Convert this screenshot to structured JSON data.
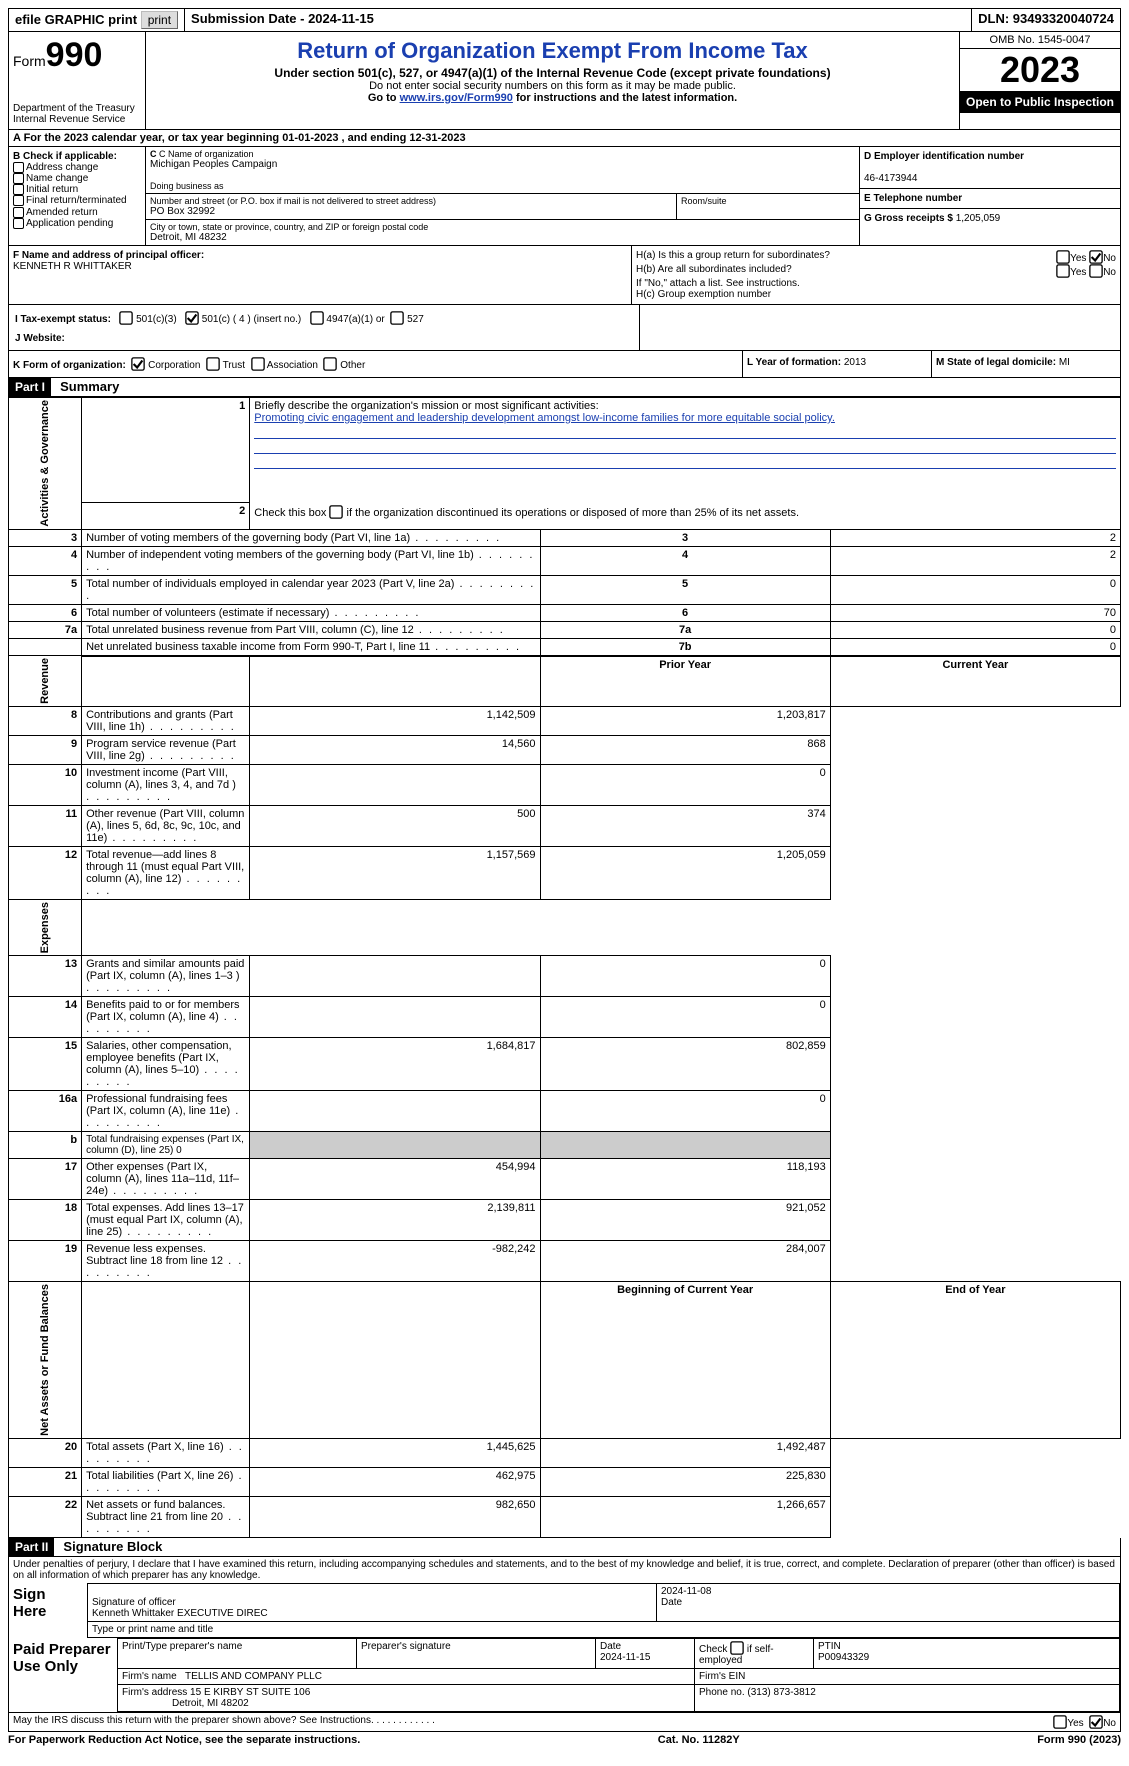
{
  "topbar": {
    "efile": "efile GRAPHIC print",
    "submission_label": "Submission Date - 2024-11-15",
    "dln_label": "DLN: 93493320040724"
  },
  "header": {
    "form_word": "Form",
    "form_num": "990",
    "dept": "Department of the Treasury",
    "irs": "Internal Revenue Service",
    "title": "Return of Organization Exempt From Income Tax",
    "sub": "Under section 501(c), 527, or 4947(a)(1) of the Internal Revenue Code (except private foundations)",
    "note1": "Do not enter social security numbers on this form as it may be made public.",
    "note2_pre": "Go to ",
    "note2_link": "www.irs.gov/Form990",
    "note2_post": " for instructions and the latest information.",
    "omb": "OMB No. 1545-0047",
    "year": "2023",
    "inspect": "Open to Public Inspection"
  },
  "line_a": "A For the 2023 calendar year, or tax year beginning 01-01-2023   , and ending 12-31-2023",
  "box_b": {
    "hdr": "B Check if applicable:",
    "opts": [
      "Address change",
      "Name change",
      "Initial return",
      "Final return/terminated",
      "Amended return",
      "Application pending"
    ]
  },
  "box_c": {
    "name_lbl": "C Name of organization",
    "name": "Michigan Peoples Campaign",
    "dba_lbl": "Doing business as",
    "addr_lbl": "Number and street (or P.O. box if mail is not delivered to street address)",
    "addr": "PO Box 32992",
    "room_lbl": "Room/suite",
    "city_lbl": "City or town, state or province, country, and ZIP or foreign postal code",
    "city": "Detroit, MI  48232"
  },
  "box_d": {
    "lbl": "D Employer identification number",
    "val": "46-4173944"
  },
  "box_e": {
    "lbl": "E Telephone number",
    "val": ""
  },
  "box_g": {
    "lbl": "G Gross receipts $",
    "val": "1,205,059"
  },
  "box_f": {
    "lbl": "F  Name and address of principal officer:",
    "val": "KENNETH R WHITTAKER"
  },
  "box_h": {
    "a": "H(a)  Is this a group return for subordinates?",
    "a_yes": "Yes",
    "a_no": "No",
    "b": "H(b)  Are all subordinates included?",
    "b_yes": "Yes",
    "b_no": "No",
    "b_note": "If \"No,\" attach a list. See instructions.",
    "c": "H(c)  Group exemption number"
  },
  "box_i": {
    "lbl": "I  Tax-exempt status:",
    "o1": "501(c)(3)",
    "o2": "501(c) ( 4 ) (insert no.)",
    "o3": "4947(a)(1) or",
    "o4": "527"
  },
  "box_j": {
    "lbl": "J  Website:",
    "val": ""
  },
  "box_k": {
    "lbl": "K Form of organization:",
    "o1": "Corporation",
    "o2": "Trust",
    "o3": "Association",
    "o4": "Other"
  },
  "box_l": {
    "lbl": "L Year of formation:",
    "val": "2013"
  },
  "box_m": {
    "lbl": "M State of legal domicile:",
    "val": "MI"
  },
  "part1": {
    "bar": "Part I",
    "title": "Summary"
  },
  "summary": {
    "side_ag": "Activities & Governance",
    "side_rev": "Revenue",
    "side_exp": "Expenses",
    "side_na": "Net Assets or Fund Balances",
    "l1_lbl": "Briefly describe the organization's mission or most significant activities:",
    "l1_val": "Promoting civic engagement and leadership development amongst low-income families for more equitable social policy.",
    "l2": "Check this box      if the organization discontinued its operations or disposed of more than 25% of its net assets.",
    "rows_ag": [
      {
        "n": "3",
        "d": "Number of voting members of the governing body (Part VI, line 1a)",
        "c": "3",
        "v": "2"
      },
      {
        "n": "4",
        "d": "Number of independent voting members of the governing body (Part VI, line 1b)",
        "c": "4",
        "v": "2"
      },
      {
        "n": "5",
        "d": "Total number of individuals employed in calendar year 2023 (Part V, line 2a)",
        "c": "5",
        "v": "0"
      },
      {
        "n": "6",
        "d": "Total number of volunteers (estimate if necessary)",
        "c": "6",
        "v": "70"
      },
      {
        "n": "7a",
        "d": "Total unrelated business revenue from Part VIII, column (C), line 12",
        "c": "7a",
        "v": "0"
      },
      {
        "n": "",
        "d": "Net unrelated business taxable income from Form 990-T, Part I, line 11",
        "c": "7b",
        "v": "0"
      }
    ],
    "hdr_prior": "Prior Year",
    "hdr_curr": "Current Year",
    "rows_rev": [
      {
        "n": "8",
        "d": "Contributions and grants (Part VIII, line 1h)",
        "p": "1,142,509",
        "c": "1,203,817"
      },
      {
        "n": "9",
        "d": "Program service revenue (Part VIII, line 2g)",
        "p": "14,560",
        "c": "868"
      },
      {
        "n": "10",
        "d": "Investment income (Part VIII, column (A), lines 3, 4, and 7d )",
        "p": "",
        "c": "0"
      },
      {
        "n": "11",
        "d": "Other revenue (Part VIII, column (A), lines 5, 6d, 8c, 9c, 10c, and 11e)",
        "p": "500",
        "c": "374"
      },
      {
        "n": "12",
        "d": "Total revenue—add lines 8 through 11 (must equal Part VIII, column (A), line 12)",
        "p": "1,157,569",
        "c": "1,205,059"
      }
    ],
    "rows_exp": [
      {
        "n": "13",
        "d": "Grants and similar amounts paid (Part IX, column (A), lines 1–3 )",
        "p": "",
        "c": "0"
      },
      {
        "n": "14",
        "d": "Benefits paid to or for members (Part IX, column (A), line 4)",
        "p": "",
        "c": "0"
      },
      {
        "n": "15",
        "d": "Salaries, other compensation, employee benefits (Part IX, column (A), lines 5–10)",
        "p": "1,684,817",
        "c": "802,859"
      },
      {
        "n": "16a",
        "d": "Professional fundraising fees (Part IX, column (A), line 11e)",
        "p": "",
        "c": "0"
      },
      {
        "n": "b",
        "d": "Total fundraising expenses (Part IX, column (D), line 25) 0",
        "p": "__SHADE__",
        "c": "__SHADE__",
        "small": true
      },
      {
        "n": "17",
        "d": "Other expenses (Part IX, column (A), lines 11a–11d, 11f–24e)",
        "p": "454,994",
        "c": "118,193"
      },
      {
        "n": "18",
        "d": "Total expenses. Add lines 13–17 (must equal Part IX, column (A), line 25)",
        "p": "2,139,811",
        "c": "921,052"
      },
      {
        "n": "19",
        "d": "Revenue less expenses. Subtract line 18 from line 12",
        "p": "-982,242",
        "c": "284,007"
      }
    ],
    "hdr_begin": "Beginning of Current Year",
    "hdr_end": "End of Year",
    "rows_na": [
      {
        "n": "20",
        "d": "Total assets (Part X, line 16)",
        "p": "1,445,625",
        "c": "1,492,487"
      },
      {
        "n": "21",
        "d": "Total liabilities (Part X, line 26)",
        "p": "462,975",
        "c": "225,830"
      },
      {
        "n": "22",
        "d": "Net assets or fund balances. Subtract line 21 from line 20",
        "p": "982,650",
        "c": "1,266,657"
      }
    ]
  },
  "part2": {
    "bar": "Part II",
    "title": "Signature Block"
  },
  "sig": {
    "penalties": "Under penalties of perjury, I declare that I have examined this return, including accompanying schedules and statements, and to the best of my knowledge and belief, it is true, correct, and complete. Declaration of preparer (other than officer) is based on all information of which preparer has any knowledge.",
    "sign_here": "Sign Here",
    "sig_officer_lbl": "Signature of officer",
    "sig_date": "2024-11-08",
    "date_lbl": "Date",
    "officer_name": "Kenneth Whittaker  EXECUTIVE DIREC",
    "type_lbl": "Type or print name and title",
    "paid": "Paid Preparer Use Only",
    "p_name_lbl": "Print/Type preparer's name",
    "p_sig_lbl": "Preparer's signature",
    "p_date_lbl": "Date",
    "p_date": "2024-11-15",
    "p_check_lbl": "Check       if self-employed",
    "ptin_lbl": "PTIN",
    "ptin": "P00943329",
    "firm_name_lbl": "Firm's name",
    "firm_name": "TELLIS AND COMPANY PLLC",
    "firm_ein_lbl": "Firm's EIN",
    "firm_addr_lbl": "Firm's address",
    "firm_addr1": "15 E KIRBY ST SUITE 106",
    "firm_addr2": "Detroit, MI  48202",
    "phone_lbl": "Phone no.",
    "phone": "(313) 873-3812",
    "discuss": "May the IRS discuss this return with the preparer shown above? See Instructions.",
    "yes": "Yes",
    "no": "No"
  },
  "footer": {
    "left": "For Paperwork Reduction Act Notice, see the separate instructions.",
    "mid": "Cat. No. 11282Y",
    "right": "Form 990 (2023)"
  },
  "glyph": {
    "checked": "☑",
    "unchecked": "☐"
  }
}
